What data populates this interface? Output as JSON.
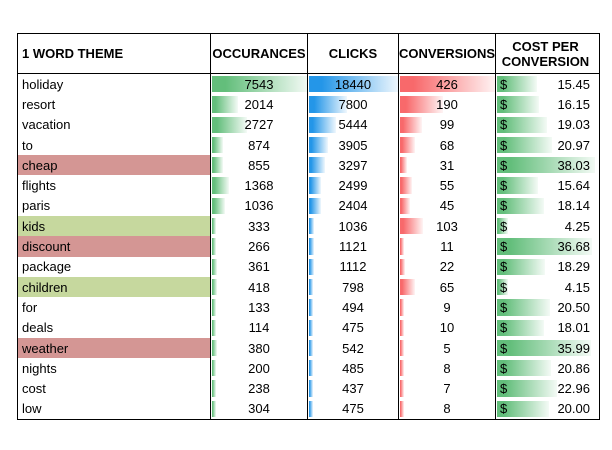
{
  "table": {
    "columns": [
      {
        "id": "theme",
        "label": "1 WORD THEME"
      },
      {
        "id": "occurrences",
        "label": "OCCURANCES",
        "bar_color": "#63BE7B"
      },
      {
        "id": "clicks",
        "label": "CLICKS",
        "bar_color": "#2496E8"
      },
      {
        "id": "conversions",
        "label": "CONVERSIONS",
        "bar_color": "#F8696B"
      },
      {
        "id": "cost_per_conversion",
        "label": "COST PER CONVERSION",
        "bar_color": "#63BE7B",
        "currency_symbol": "$"
      }
    ],
    "highlight_colors": {
      "red": "#D49694",
      "green": "#C6D89E"
    },
    "border_color": "#000000",
    "rows": [
      {
        "theme": "holiday",
        "highlight": null,
        "occurrences": 7543,
        "clicks": 18440,
        "conversions": 426,
        "cost_per_conversion": 15.45
      },
      {
        "theme": "resort",
        "highlight": null,
        "occurrences": 2014,
        "clicks": 7800,
        "conversions": 190,
        "cost_per_conversion": 16.15
      },
      {
        "theme": "vacation",
        "highlight": null,
        "occurrences": 2727,
        "clicks": 5444,
        "conversions": 99,
        "cost_per_conversion": 19.03
      },
      {
        "theme": "to",
        "highlight": null,
        "occurrences": 874,
        "clicks": 3905,
        "conversions": 68,
        "cost_per_conversion": 20.97
      },
      {
        "theme": "cheap",
        "highlight": "red",
        "occurrences": 855,
        "clicks": 3297,
        "conversions": 31,
        "cost_per_conversion": 38.03
      },
      {
        "theme": "flights",
        "highlight": null,
        "occurrences": 1368,
        "clicks": 2499,
        "conversions": 55,
        "cost_per_conversion": 15.64
      },
      {
        "theme": "paris",
        "highlight": null,
        "occurrences": 1036,
        "clicks": 2404,
        "conversions": 45,
        "cost_per_conversion": 18.14
      },
      {
        "theme": "kids",
        "highlight": "green",
        "occurrences": 333,
        "clicks": 1036,
        "conversions": 103,
        "cost_per_conversion": 4.25
      },
      {
        "theme": "discount",
        "highlight": "red",
        "occurrences": 266,
        "clicks": 1121,
        "conversions": 11,
        "cost_per_conversion": 36.68
      },
      {
        "theme": "package",
        "highlight": null,
        "occurrences": 361,
        "clicks": 1112,
        "conversions": 22,
        "cost_per_conversion": 18.29
      },
      {
        "theme": "children",
        "highlight": "green",
        "occurrences": 418,
        "clicks": 798,
        "conversions": 65,
        "cost_per_conversion": 4.15
      },
      {
        "theme": "for",
        "highlight": null,
        "occurrences": 133,
        "clicks": 494,
        "conversions": 9,
        "cost_per_conversion": 20.5
      },
      {
        "theme": "deals",
        "highlight": null,
        "occurrences": 114,
        "clicks": 475,
        "conversions": 10,
        "cost_per_conversion": 18.01
      },
      {
        "theme": "weather",
        "highlight": "red",
        "occurrences": 380,
        "clicks": 542,
        "conversions": 5,
        "cost_per_conversion": 35.99
      },
      {
        "theme": "nights",
        "highlight": null,
        "occurrences": 200,
        "clicks": 485,
        "conversions": 8,
        "cost_per_conversion": 20.86
      },
      {
        "theme": "cost",
        "highlight": null,
        "occurrences": 238,
        "clicks": 437,
        "conversions": 7,
        "cost_per_conversion": 22.96
      },
      {
        "theme": "low",
        "highlight": null,
        "occurrences": 304,
        "clicks": 475,
        "conversions": 8,
        "cost_per_conversion": 20.0
      }
    ]
  },
  "chart_data": {
    "type": "table",
    "categories": [
      "holiday",
      "resort",
      "vacation",
      "to",
      "cheap",
      "flights",
      "paris",
      "kids",
      "discount",
      "package",
      "children",
      "for",
      "deals",
      "weather",
      "nights",
      "cost",
      "low"
    ],
    "series": [
      {
        "name": "OCCURANCES",
        "bar_style": "green gradient data bar",
        "values": [
          7543,
          2014,
          2727,
          874,
          855,
          1368,
          1036,
          333,
          266,
          361,
          418,
          133,
          114,
          380,
          200,
          238,
          304
        ]
      },
      {
        "name": "CLICKS",
        "bar_style": "blue gradient data bar",
        "values": [
          18440,
          7800,
          5444,
          3905,
          3297,
          2499,
          2404,
          1036,
          1121,
          1112,
          798,
          494,
          475,
          542,
          485,
          437,
          475
        ]
      },
      {
        "name": "CONVERSIONS",
        "bar_style": "red gradient data bar",
        "values": [
          426,
          190,
          99,
          68,
          31,
          55,
          45,
          103,
          11,
          22,
          65,
          9,
          10,
          5,
          8,
          7,
          8
        ]
      },
      {
        "name": "COST PER CONVERSION",
        "unit": "$",
        "bar_style": "green gradient data bar",
        "values": [
          15.45,
          16.15,
          19.03,
          20.97,
          38.03,
          15.64,
          18.14,
          4.25,
          36.68,
          18.29,
          4.15,
          20.5,
          18.01,
          35.99,
          20.86,
          22.96,
          20.0
        ]
      }
    ],
    "row_highlights": {
      "red": [
        "cheap",
        "discount",
        "weather"
      ],
      "green": [
        "kids",
        "children"
      ]
    },
    "legend_position": "none",
    "grid": "column borders only, black outline"
  }
}
